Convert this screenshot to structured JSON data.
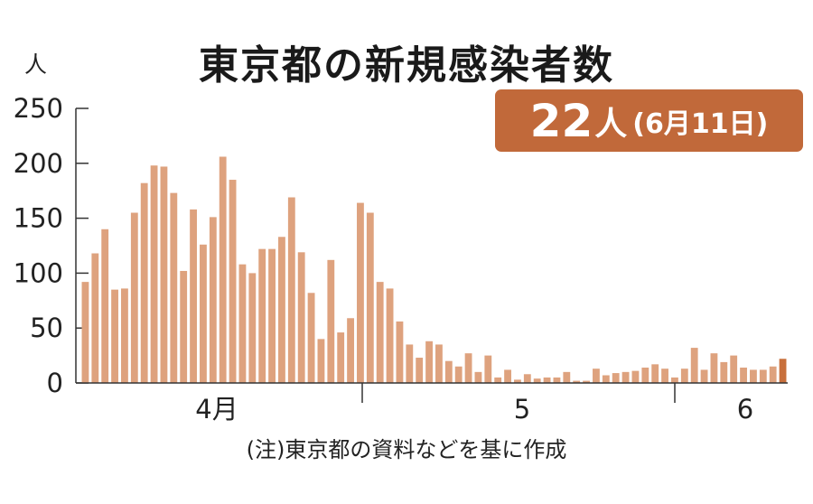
{
  "title": "東京都の新規感染者数",
  "badge": {
    "value": "22",
    "unit": "人",
    "date": "(6月11日)",
    "color": "#c1693a"
  },
  "note": "(注)東京都の資料などを基に作成",
  "colors": {
    "bar": "#dea27e",
    "bar_last": "#c8703c",
    "axis": "#333333"
  },
  "chart_data": {
    "type": "bar",
    "title": "東京都の新規感染者数",
    "ylabel": "人",
    "ylim": [
      0,
      250
    ],
    "yticks": [
      0,
      50,
      100,
      150,
      200,
      250
    ],
    "month_labels": [
      "4月",
      "5",
      "6"
    ],
    "values": [
      92,
      118,
      140,
      85,
      86,
      155,
      182,
      198,
      197,
      173,
      102,
      158,
      126,
      151,
      206,
      185,
      108,
      100,
      122,
      122,
      133,
      169,
      119,
      82,
      40,
      112,
      46,
      59,
      164,
      155,
      92,
      86,
      56,
      35,
      23,
      38,
      35,
      20,
      15,
      27,
      10,
      25,
      5,
      12,
      3,
      8,
      4,
      5,
      5,
      10,
      2,
      2,
      13,
      7,
      9,
      10,
      11,
      14,
      17,
      13,
      5,
      13,
      32,
      12,
      27,
      19,
      25,
      14,
      12,
      12,
      15,
      22
    ],
    "highlight_last": true
  }
}
